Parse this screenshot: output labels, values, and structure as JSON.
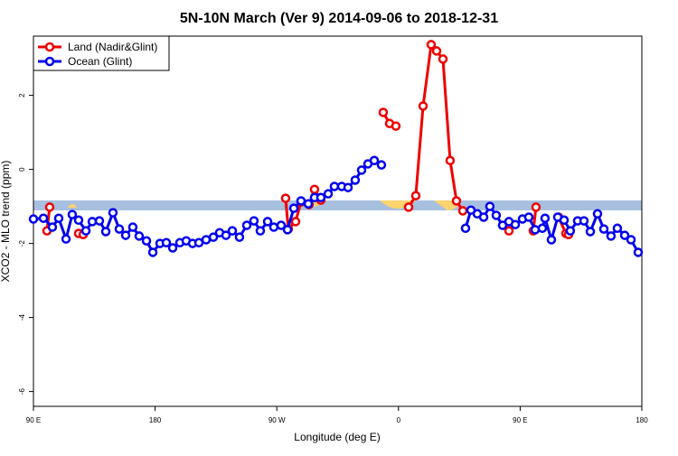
{
  "chart_data": {
    "type": "line",
    "title": "5N-10N March (Ver 9)   2014-09-06 to 2018-12-31",
    "x_label": "Longitude (deg E)",
    "y_label": "XCO2 - MLO trend (ppm)",
    "xlim": [
      90,
      540
    ],
    "xticks": [
      {
        "value": 90,
        "label": "90 E"
      },
      180,
      {
        "value": 270,
        "label": "90 W"
      },
      {
        "value": 360,
        "label": "0"
      },
      {
        "value": 450,
        "label": "90 E"
      },
      {
        "value": 540,
        "label": "180"
      }
    ],
    "ylim": [
      -6.4,
      3.6
    ],
    "yticks": [
      -6,
      -4,
      -2,
      0,
      2
    ],
    "legend": "top-left",
    "series": [
      {
        "name": "Land (Nadir&Glint)",
        "color": "#ee0000",
        "x": [
          100.0,
          102.0,
          110,
          123.4,
          126.8,
          200,
          276.5,
          278.5,
          283.9,
          287.9,
          293.9,
          297.9,
          302.6,
          320,
          348.7,
          353.4,
          358.1,
          362,
          367.5,
          372.8,
          378.2,
          384.2,
          388.2,
          392.9,
          398.2,
          402.9,
          407.6,
          425,
          441.7,
          446,
          459.7,
          461.7,
          470,
          478.4,
          483.8,
          485.8
        ],
        "values": [
          -1.66,
          -1.02,
          null,
          -1.73,
          -1.76,
          null,
          -0.78,
          -1.61,
          -1.41,
          -0.88,
          -0.95,
          -0.54,
          -0.83,
          null,
          1.54,
          1.24,
          1.17,
          null,
          -1.02,
          -0.71,
          1.71,
          3.37,
          3.2,
          2.98,
          0.24,
          -0.85,
          -1.12,
          null,
          -1.66,
          null,
          -1.66,
          -1.02,
          null,
          -1.29,
          -1.73,
          -1.76
        ]
      },
      {
        "name": "Ocean (Glint)",
        "color": "#0000ee",
        "x": [
          90.0,
          97.4,
          104.0,
          108.7,
          114.1,
          118.7,
          123.4,
          128.8,
          133.5,
          138.8,
          143.5,
          148.8,
          153.5,
          158.2,
          163.5,
          168.2,
          173.6,
          178.3,
          183.6,
          188.3,
          193.0,
          198.3,
          203.0,
          207.7,
          212.4,
          217.7,
          223.1,
          227.7,
          232.4,
          237.1,
          242.4,
          247.8,
          253.1,
          257.8,
          263.2,
          267.8,
          273.2,
          277.9,
          282.6,
          287.9,
          293.3,
          297.9,
          302.6,
          308.0,
          312.6,
          318.0,
          322.7,
          328.0,
          332.7,
          337.4,
          342.1,
          347.4,
          380,
          409.6,
          413.6,
          418.3,
          423.0,
          427.6,
          432.3,
          437.0,
          441.7,
          446.4,
          451.7,
          456.4,
          461.1,
          466.4,
          468.4,
          473.1,
          477.8,
          482.5,
          487.1,
          492.5,
          497.2,
          501.9,
          507.2,
          511.9,
          517.2,
          521.9,
          527.3,
          532.0,
          537.3
        ],
        "values": [
          -1.34,
          -1.32,
          -1.56,
          -1.32,
          -1.88,
          -1.22,
          -1.37,
          -1.66,
          -1.41,
          -1.39,
          -1.68,
          -1.17,
          -1.61,
          -1.78,
          -1.56,
          -1.8,
          -1.93,
          -2.24,
          -2.0,
          -1.98,
          -2.12,
          -1.98,
          -1.93,
          -2.0,
          -1.98,
          -1.9,
          -1.83,
          -1.71,
          -1.78,
          -1.66,
          -1.83,
          -1.51,
          -1.39,
          -1.66,
          -1.41,
          -1.56,
          -1.51,
          -1.63,
          -1.05,
          -0.85,
          -0.93,
          -0.76,
          -0.76,
          -0.66,
          -0.46,
          -0.46,
          -0.49,
          -0.29,
          -0.02,
          0.15,
          0.24,
          0.12,
          null,
          -1.59,
          -1.1,
          -1.2,
          -1.29,
          -1.0,
          -1.24,
          -1.51,
          -1.41,
          -1.49,
          -1.34,
          -1.29,
          -1.63,
          -1.59,
          -1.32,
          -1.9,
          -1.29,
          -1.37,
          -1.66,
          -1.39,
          -1.39,
          -1.68,
          -1.2,
          -1.61,
          -1.8,
          -1.59,
          -1.78,
          -1.9,
          -2.24
        ]
      }
    ]
  }
}
